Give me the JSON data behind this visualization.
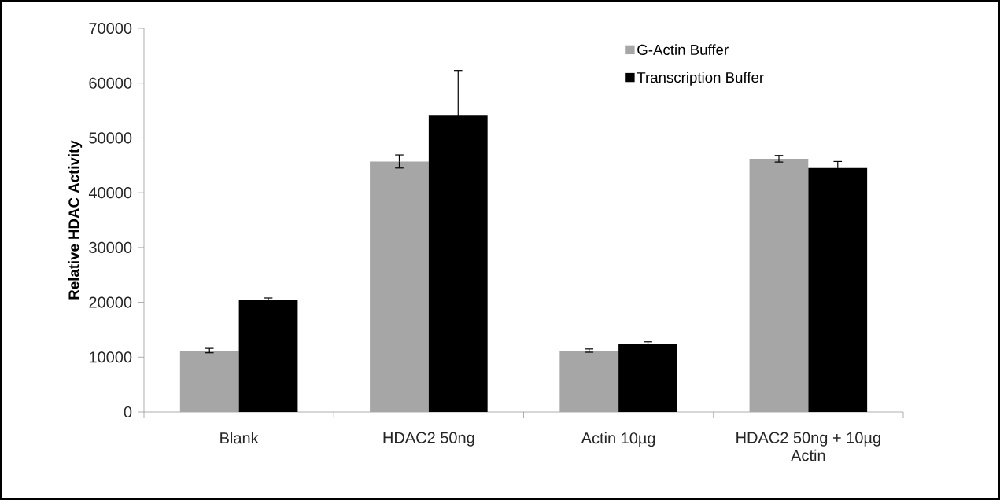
{
  "chart_data": {
    "type": "bar",
    "ylabel": "Relative HDAC Activity",
    "categories": [
      "Blank",
      "HDAC2 50ng",
      "Actin 10µg",
      "HDAC2 50ng + 10µg Actin"
    ],
    "series": [
      {
        "name": "G-Actin Buffer",
        "color": "#a6a6a6",
        "values": [
          11200,
          45700,
          11200,
          46200
        ],
        "errors": [
          400,
          1200,
          300,
          600
        ]
      },
      {
        "name": "Transcription Buffer",
        "color": "#000000",
        "values": [
          20400,
          54200,
          12400,
          44500
        ],
        "errors": [
          400,
          8100,
          400,
          1200
        ]
      }
    ],
    "ylim": [
      0,
      70000
    ],
    "yticks": [
      0,
      10000,
      20000,
      30000,
      40000,
      50000,
      60000,
      70000
    ],
    "grid": false,
    "legend": "top right"
  }
}
